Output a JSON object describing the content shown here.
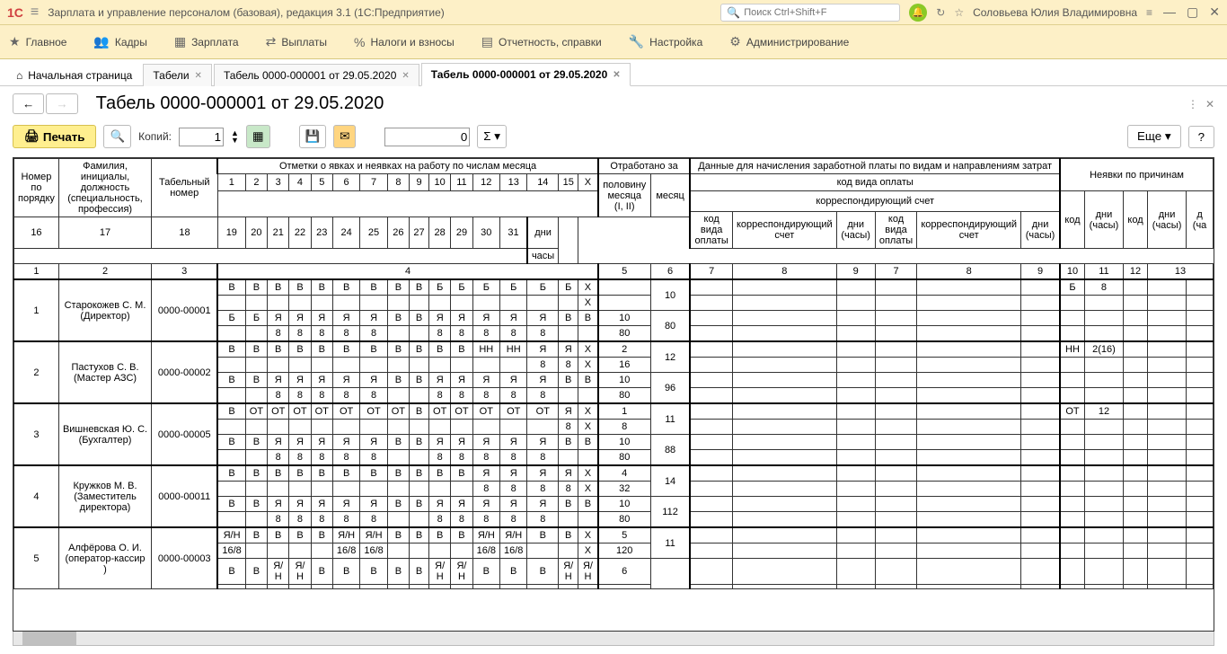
{
  "app": {
    "title": "Зарплата и управление персоналом (базовая), редакция 3.1  (1С:Предприятие)",
    "search_placeholder": "Поиск Ctrl+Shift+F",
    "username": "Соловьева Юлия Владимировна"
  },
  "mainmenu": [
    {
      "icon": "★",
      "label": "Главное"
    },
    {
      "icon": "👥",
      "label": "Кадры"
    },
    {
      "icon": "▦",
      "label": "Зарплата"
    },
    {
      "icon": "⇄",
      "label": "Выплаты"
    },
    {
      "icon": "%",
      "label": "Налоги и взносы"
    },
    {
      "icon": "▤",
      "label": "Отчетность, справки"
    },
    {
      "icon": "🔧",
      "label": "Настройка"
    },
    {
      "icon": "⚙",
      "label": "Администрирование"
    }
  ],
  "tabs": [
    {
      "label": "Начальная страница",
      "home": true
    },
    {
      "label": "Табели",
      "closable": true
    },
    {
      "label": "Табель 0000-000001 от 29.05.2020",
      "closable": true
    },
    {
      "label": "Табель 0000-000001 от 29.05.2020",
      "closable": true,
      "active": true
    }
  ],
  "doc": {
    "title": "Табель 0000-000001 от 29.05.2020"
  },
  "toolbar": {
    "print": "Печать",
    "copies_label": "Копий:",
    "copies_value": "1",
    "num_value": "0",
    "more": "Еще",
    "help": "?"
  },
  "table_headers": {
    "num": "Номер по порядку",
    "name": "Фамилия, инициалы, должность (специальность, профессия)",
    "tabnum": "Табельный номер",
    "marks": "Отметки о явках и неявках на работу по числам месяца",
    "worked": "Отработано за",
    "half": "половину месяца (I, II)",
    "month": "месяц",
    "days": "дни",
    "hours": "часы",
    "paydata": "Данные для начисления заработной платы по видам и направлениям затрат",
    "paycode": "код вида оплаты",
    "account": "корреспондирующий счет",
    "pay_code": "код вида оплаты",
    "pay_acc": "корреспондирующий счет",
    "pay_days": "дни (часы)",
    "absences": "Неявки по причинам",
    "abs_code": "код",
    "abs_days": "дни (часы)",
    "col1": "1",
    "col2": "2",
    "col3": "3",
    "col4": "4",
    "col5": "5",
    "col6": "6",
    "col7": "7",
    "col8": "8",
    "col9": "9",
    "col10": "10",
    "col11": "11",
    "col12": "12",
    "col13": "13"
  },
  "days1": [
    "1",
    "2",
    "3",
    "4",
    "5",
    "6",
    "7",
    "8",
    "9",
    "10",
    "11",
    "12",
    "13",
    "14",
    "15",
    "Х"
  ],
  "days2": [
    "16",
    "17",
    "18",
    "19",
    "20",
    "21",
    "22",
    "23",
    "24",
    "25",
    "26",
    "27",
    "28",
    "29",
    "30",
    "31"
  ],
  "employees": [
    {
      "num": "1",
      "name": "Старокожев С. М.",
      "pos": "(Директор)",
      "tabnum": "0000-00001",
      "r1": [
        "В",
        "В",
        "В",
        "В",
        "В",
        "В",
        "В",
        "В",
        "В",
        "Б",
        "Б",
        "Б",
        "Б",
        "Б",
        "Б",
        "Х"
      ],
      "r2": [
        "",
        "",
        "",
        "",
        "",
        "",
        "",
        "",
        "",
        "",
        "",
        "",
        "",
        "",
        "",
        "Х"
      ],
      "r3": [
        "Б",
        "Б",
        "Я",
        "Я",
        "Я",
        "Я",
        "Я",
        "В",
        "В",
        "Я",
        "Я",
        "Я",
        "Я",
        "Я",
        "В",
        "В"
      ],
      "r4": [
        "",
        "",
        "8",
        "8",
        "8",
        "8",
        "8",
        "",
        "",
        "8",
        "8",
        "8",
        "8",
        "8",
        "",
        ""
      ],
      "half1": "",
      "half2": "",
      "half3": "10",
      "half4": "80",
      "month_days": "10",
      "month_hours": "80",
      "abs_code": "Б",
      "abs_days": "8"
    },
    {
      "num": "2",
      "name": "Пастухов С. В.",
      "pos": "(Мастер АЗС)",
      "tabnum": "0000-00002",
      "r1": [
        "В",
        "В",
        "В",
        "В",
        "В",
        "В",
        "В",
        "В",
        "В",
        "В",
        "В",
        "НН",
        "НН",
        "Я",
        "Я",
        "Х"
      ],
      "r2": [
        "",
        "",
        "",
        "",
        "",
        "",
        "",
        "",
        "",
        "",
        "",
        "",
        "",
        "8",
        "8",
        "Х"
      ],
      "r3": [
        "В",
        "В",
        "Я",
        "Я",
        "Я",
        "Я",
        "Я",
        "В",
        "В",
        "Я",
        "Я",
        "Я",
        "Я",
        "Я",
        "В",
        "В"
      ],
      "r4": [
        "",
        "",
        "8",
        "8",
        "8",
        "8",
        "8",
        "",
        "",
        "8",
        "8",
        "8",
        "8",
        "8",
        "",
        ""
      ],
      "half1": "2",
      "half2": "16",
      "half3": "10",
      "half4": "80",
      "month_days": "12",
      "month_hours": "96",
      "abs_code": "НН",
      "abs_days": "2(16)"
    },
    {
      "num": "3",
      "name": "Вишневская Ю. С.",
      "pos": "(Бухгалтер)",
      "tabnum": "0000-00005",
      "r1": [
        "В",
        "ОТ",
        "ОТ",
        "ОТ",
        "ОТ",
        "ОТ",
        "ОТ",
        "ОТ",
        "В",
        "ОТ",
        "ОТ",
        "ОТ",
        "ОТ",
        "ОТ",
        "Я",
        "Х"
      ],
      "r2": [
        "",
        "",
        "",
        "",
        "",
        "",
        "",
        "",
        "",
        "",
        "",
        "",
        "",
        "",
        "8",
        "Х"
      ],
      "r3": [
        "В",
        "В",
        "Я",
        "Я",
        "Я",
        "Я",
        "Я",
        "В",
        "В",
        "Я",
        "Я",
        "Я",
        "Я",
        "Я",
        "В",
        "В"
      ],
      "r4": [
        "",
        "",
        "8",
        "8",
        "8",
        "8",
        "8",
        "",
        "",
        "8",
        "8",
        "8",
        "8",
        "8",
        "",
        ""
      ],
      "half1": "1",
      "half2": "8",
      "half3": "10",
      "half4": "80",
      "month_days": "11",
      "month_hours": "88",
      "abs_code": "ОТ",
      "abs_days": "12"
    },
    {
      "num": "4",
      "name": "Кружков М. В.",
      "pos": "(Заместитель директора)",
      "tabnum": "0000-00011",
      "r1": [
        "В",
        "В",
        "В",
        "В",
        "В",
        "В",
        "В",
        "В",
        "В",
        "В",
        "В",
        "Я",
        "Я",
        "Я",
        "Я",
        "Х"
      ],
      "r2": [
        "",
        "",
        "",
        "",
        "",
        "",
        "",
        "",
        "",
        "",
        "",
        "8",
        "8",
        "8",
        "8",
        "Х"
      ],
      "r3": [
        "В",
        "В",
        "Я",
        "Я",
        "Я",
        "Я",
        "Я",
        "В",
        "В",
        "Я",
        "Я",
        "Я",
        "Я",
        "Я",
        "В",
        "В"
      ],
      "r4": [
        "",
        "",
        "8",
        "8",
        "8",
        "8",
        "8",
        "",
        "",
        "8",
        "8",
        "8",
        "8",
        "8",
        "",
        ""
      ],
      "half1": "4",
      "half2": "32",
      "half3": "10",
      "half4": "80",
      "month_days": "14",
      "month_hours": "112",
      "abs_code": "",
      "abs_days": ""
    },
    {
      "num": "5",
      "name": "Алфёрова О. И.",
      "pos": "(оператор-кассир )",
      "tabnum": "0000-00003",
      "r1": [
        "Я/Н",
        "В",
        "В",
        "В",
        "В",
        "Я/Н",
        "Я/Н",
        "В",
        "В",
        "В",
        "В",
        "Я/Н",
        "Я/Н",
        "В",
        "В",
        "Х"
      ],
      "r2": [
        "16/8",
        "",
        "",
        "",
        "",
        "16/8",
        "16/8",
        "",
        "",
        "",
        "",
        "16/8",
        "16/8",
        "",
        "",
        "Х"
      ],
      "r3": [
        "В",
        "В",
        "Я/Н",
        "Я/Н",
        "В",
        "В",
        "В",
        "В",
        "В",
        "Я/Н",
        "Я/Н",
        "В",
        "В",
        "В",
        "Я/Н",
        "Я/Н"
      ],
      "r4": [
        "",
        "",
        "",
        "",
        "",
        "",
        "",
        "",
        "",
        "",
        "",
        "",
        "",
        "",
        "",
        ""
      ],
      "half1": "5",
      "half2": "120",
      "half3": "6",
      "half4": "",
      "month_days": "11",
      "month_hours": "",
      "abs_code": "",
      "abs_days": ""
    }
  ]
}
